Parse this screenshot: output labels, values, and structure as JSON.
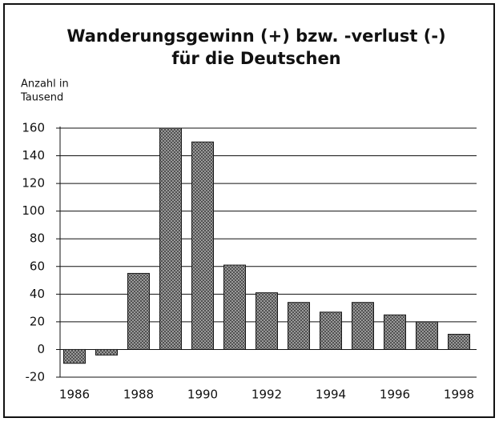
{
  "chart_data": {
    "type": "bar",
    "title": [
      "Wanderungsgewinn (+) bzw. -verlust (-)",
      "für die Deutschen"
    ],
    "y_label": [
      "Anzahl in",
      "Tausend"
    ],
    "categories": [
      "1986",
      null,
      "1988",
      null,
      "1990",
      null,
      "1992",
      null,
      "1994",
      null,
      "1996",
      null,
      "1998"
    ],
    "values": [
      -10,
      -4,
      55,
      160,
      150,
      61,
      41,
      34,
      27,
      34,
      25,
      20,
      11
    ],
    "color": "#a8a8a8",
    "ylim": [
      -20,
      160
    ],
    "yticks": [
      -20,
      0,
      20,
      40,
      60,
      80,
      100,
      120,
      140,
      160
    ],
    "grid": true
  }
}
